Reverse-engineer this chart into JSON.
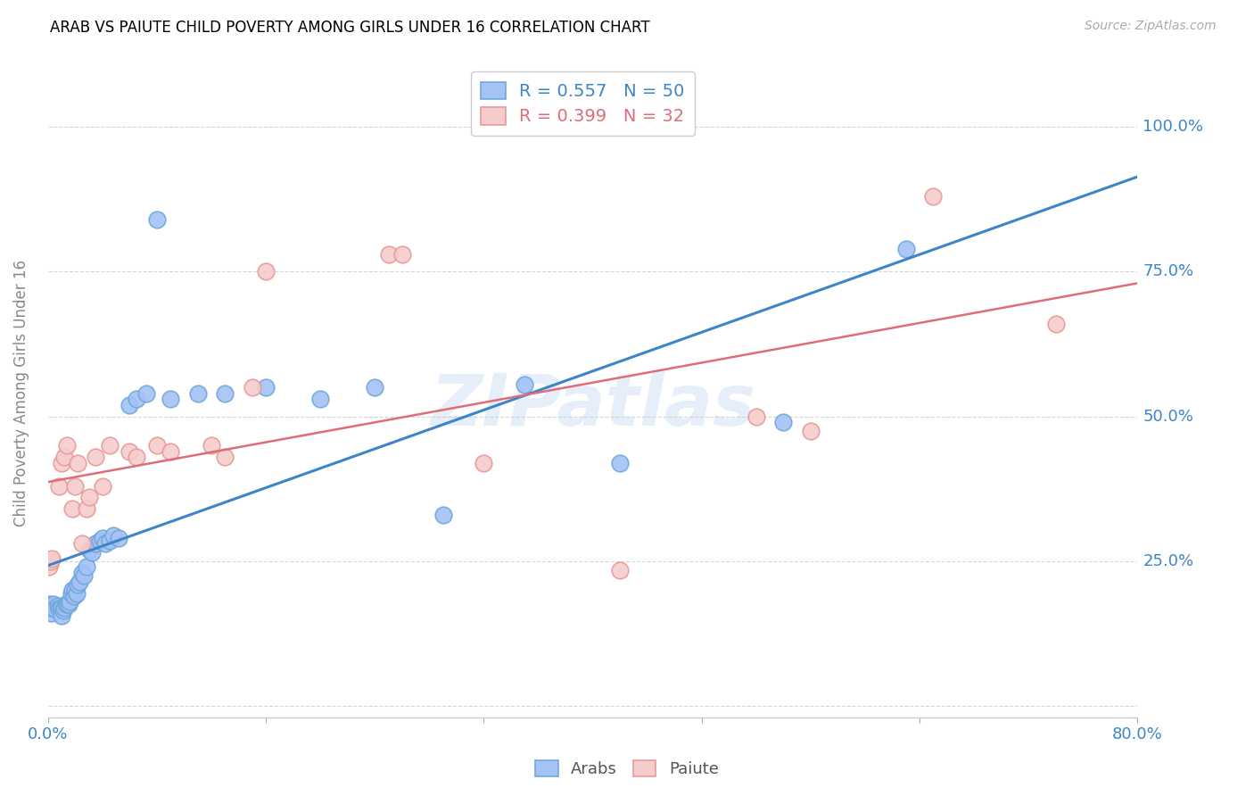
{
  "title": "ARAB VS PAIUTE CHILD POVERTY AMONG GIRLS UNDER 16 CORRELATION CHART",
  "source": "Source: ZipAtlas.com",
  "ylabel": "Child Poverty Among Girls Under 16",
  "watermark": "ZIPatlas",
  "xlim": [
    0.0,
    0.8
  ],
  "ylim": [
    -0.02,
    1.1
  ],
  "xticks": [
    0.0,
    0.16,
    0.32,
    0.48,
    0.64,
    0.8
  ],
  "xticklabels": [
    "0.0%",
    "",
    "",
    "",
    "",
    "80.0%"
  ],
  "ytick_positions": [
    0.0,
    0.25,
    0.5,
    0.75,
    1.0
  ],
  "yticklabels": [
    "",
    "25.0%",
    "50.0%",
    "75.0%",
    "100.0%"
  ],
  "arab_color": "#6fa8dc",
  "arab_color_fill": "#a4c2f4",
  "paiute_color": "#ea9999",
  "paiute_color_fill": "#f4cccc",
  "arab_line_color": "#3d85c8",
  "paiute_line_color": "#e06c7a",
  "arab_R": 0.557,
  "arab_N": 50,
  "paiute_R": 0.399,
  "paiute_N": 32,
  "arab_x": [
    0.001,
    0.002,
    0.003,
    0.004,
    0.005,
    0.007,
    0.008,
    0.009,
    0.01,
    0.01,
    0.011,
    0.012,
    0.013,
    0.014,
    0.015,
    0.016,
    0.017,
    0.018,
    0.019,
    0.02,
    0.021,
    0.022,
    0.023,
    0.025,
    0.026,
    0.028,
    0.03,
    0.032,
    0.035,
    0.038,
    0.04,
    0.042,
    0.045,
    0.048,
    0.052,
    0.06,
    0.065,
    0.072,
    0.08,
    0.09,
    0.11,
    0.13,
    0.16,
    0.2,
    0.24,
    0.29,
    0.35,
    0.42,
    0.54,
    0.63
  ],
  "arab_y": [
    0.175,
    0.16,
    0.17,
    0.175,
    0.168,
    0.172,
    0.168,
    0.17,
    0.155,
    0.17,
    0.165,
    0.17,
    0.175,
    0.175,
    0.175,
    0.18,
    0.195,
    0.2,
    0.19,
    0.2,
    0.195,
    0.21,
    0.215,
    0.23,
    0.225,
    0.24,
    0.27,
    0.265,
    0.28,
    0.285,
    0.29,
    0.28,
    0.285,
    0.295,
    0.29,
    0.52,
    0.53,
    0.54,
    0.84,
    0.53,
    0.54,
    0.54,
    0.55,
    0.53,
    0.55,
    0.33,
    0.555,
    0.42,
    0.49,
    0.79
  ],
  "paiute_x": [
    0.001,
    0.002,
    0.003,
    0.008,
    0.01,
    0.012,
    0.014,
    0.018,
    0.02,
    0.022,
    0.025,
    0.028,
    0.03,
    0.035,
    0.04,
    0.045,
    0.06,
    0.065,
    0.08,
    0.09,
    0.12,
    0.13,
    0.15,
    0.16,
    0.25,
    0.26,
    0.32,
    0.42,
    0.52,
    0.56,
    0.65,
    0.74
  ],
  "paiute_y": [
    0.24,
    0.25,
    0.255,
    0.38,
    0.42,
    0.43,
    0.45,
    0.34,
    0.38,
    0.42,
    0.28,
    0.34,
    0.36,
    0.43,
    0.38,
    0.45,
    0.44,
    0.43,
    0.45,
    0.44,
    0.45,
    0.43,
    0.55,
    0.75,
    0.78,
    0.78,
    0.42,
    0.235,
    0.5,
    0.475,
    0.88,
    0.66
  ],
  "background_color": "#ffffff",
  "grid_color": "#cccccc",
  "tick_label_color": "#3d85c8",
  "title_color": "#000000",
  "ylabel_color": "#888888"
}
